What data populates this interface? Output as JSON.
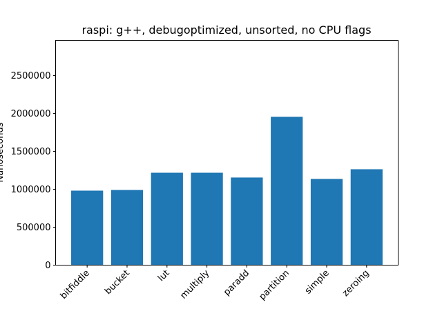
{
  "chart_data": {
    "type": "bar",
    "title": "raspi: g++, debugoptimized, unsorted, no CPU flags",
    "xlabel": "",
    "ylabel": "Nanoseconds",
    "categories": [
      "bitfiddle",
      "bucket",
      "lut",
      "multiply",
      "paradd",
      "partition",
      "simple",
      "zeroing"
    ],
    "values": [
      982000,
      991000,
      1218000,
      1218000,
      1155000,
      1955000,
      1136000,
      1264000
    ],
    "ylim": [
      0,
      2963000
    ],
    "yticks": [
      0,
      500000,
      1000000,
      1500000,
      2000000,
      2500000
    ],
    "ytick_labels": [
      "0",
      "500000",
      "1000000",
      "1500000",
      "2000000",
      "2500000"
    ],
    "bar_color": "#1f77b4",
    "grid": false,
    "legend": "none"
  }
}
